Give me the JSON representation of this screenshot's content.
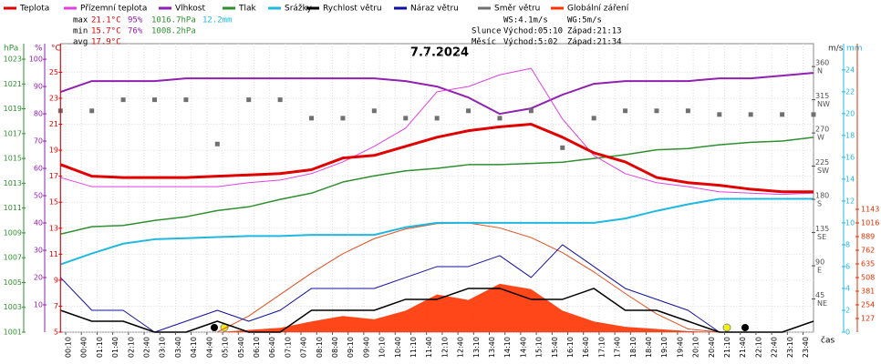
{
  "chart_data": {
    "type": "line",
    "title": "7.7.2024",
    "x": [
      0,
      60,
      120,
      180,
      240,
      300,
      360,
      420,
      480,
      540,
      600,
      660,
      720,
      780,
      840,
      900,
      960,
      1020,
      1080,
      1140,
      1200,
      1260,
      1320,
      1380,
      1440
    ],
    "xlim": [
      0,
      1440
    ],
    "xlabel": "čas",
    "grid": true,
    "xticks": [
      {
        "value": 10,
        "label": "00:10"
      },
      {
        "value": 40,
        "label": "00:40"
      },
      {
        "value": 70,
        "label": "01:10"
      },
      {
        "value": 100,
        "label": "01:40"
      },
      {
        "value": 130,
        "label": "02:10"
      },
      {
        "value": 160,
        "label": "02:40"
      },
      {
        "value": 190,
        "label": "03:10"
      },
      {
        "value": 220,
        "label": "03:40"
      },
      {
        "value": 250,
        "label": "04:10"
      },
      {
        "value": 280,
        "label": "04:40"
      },
      {
        "value": 310,
        "label": "05:10"
      },
      {
        "value": 340,
        "label": "05:40"
      },
      {
        "value": 370,
        "label": "06:10"
      },
      {
        "value": 400,
        "label": "06:40"
      },
      {
        "value": 430,
        "label": "07:10"
      },
      {
        "value": 460,
        "label": "07:40"
      },
      {
        "value": 490,
        "label": "08:10"
      },
      {
        "value": 520,
        "label": "08:40"
      },
      {
        "value": 550,
        "label": "09:10"
      },
      {
        "value": 580,
        "label": "09:40"
      },
      {
        "value": 610,
        "label": "10:10"
      },
      {
        "value": 640,
        "label": "10:40"
      },
      {
        "value": 670,
        "label": "11:10"
      },
      {
        "value": 700,
        "label": "11:40"
      },
      {
        "value": 730,
        "label": "12:10"
      },
      {
        "value": 760,
        "label": "12:40"
      },
      {
        "value": 790,
        "label": "13:10"
      },
      {
        "value": 820,
        "label": "13:40"
      },
      {
        "value": 850,
        "label": "14:10"
      },
      {
        "value": 880,
        "label": "14:40"
      },
      {
        "value": 910,
        "label": "15:10"
      },
      {
        "value": 940,
        "label": "15:40"
      },
      {
        "value": 970,
        "label": "16:10"
      },
      {
        "value": 1000,
        "label": "16:40"
      },
      {
        "value": 1030,
        "label": "17:10"
      },
      {
        "value": 1060,
        "label": "17:40"
      },
      {
        "value": 1090,
        "label": "18:10"
      },
      {
        "value": 1120,
        "label": "18:40"
      },
      {
        "value": 1150,
        "label": "19:10"
      },
      {
        "value": 1180,
        "label": "19:40"
      },
      {
        "value": 1210,
        "label": "20:10"
      },
      {
        "value": 1240,
        "label": "20:40"
      },
      {
        "value": 1270,
        "label": "21:10"
      },
      {
        "value": 1300,
        "label": "21:40"
      },
      {
        "value": 1330,
        "label": "22:10"
      },
      {
        "value": 1360,
        "label": "22:40"
      },
      {
        "value": 1390,
        "label": "23:10"
      },
      {
        "value": 1420,
        "label": "23:40"
      }
    ],
    "axes": {
      "press": {
        "unit": "hPa",
        "color": "#2f8f2f",
        "ylim": [
          1001,
          1024.25
        ],
        "yticks": [
          1001,
          1003,
          1005,
          1007,
          1009,
          1011,
          1013,
          1015,
          1017,
          1019,
          1021,
          1023
        ]
      },
      "hum": {
        "unit": "%",
        "color": "#9020b0",
        "ylim": [
          0,
          105.7
        ],
        "yticks": [
          10,
          20,
          30,
          40,
          50,
          60,
          70,
          80,
          90,
          100
        ]
      },
      "temp": {
        "unit": "°C",
        "color": "#e00000",
        "ylim": [
          5,
          27.2
        ],
        "yticks": [
          5,
          7,
          9,
          11,
          13,
          15,
          17,
          19,
          21,
          23,
          25
        ]
      },
      "dir": {
        "color": "#505050",
        "ylim": [
          0,
          391
        ],
        "yticks": [
          45,
          90,
          135,
          180,
          225,
          270,
          315,
          360
        ],
        "compass": [
          "NE",
          "E",
          "SE",
          "S",
          "SW",
          "W",
          "NW",
          "N"
        ]
      },
      "wind": {
        "unit": "m/s",
        "color": "#303030",
        "ylim": [
          0,
          26.4
        ]
      },
      "rain": {
        "unit": "mm",
        "color": "#20b8e0",
        "ylim": [
          0,
          26.4
        ],
        "yticks": [
          0,
          2,
          4,
          6,
          8,
          10,
          12,
          14,
          16,
          18,
          20,
          22,
          24
        ]
      },
      "solar": {
        "color": "#e03000",
        "ylim": [
          0,
          2684
        ],
        "yticks": [
          127,
          254,
          381,
          508,
          635,
          762,
          889,
          1016,
          1143
        ]
      }
    },
    "series": [
      {
        "name": "Globální záření",
        "kind": "area",
        "axis": "solar",
        "color": "#ff3300",
        "values": [
          0,
          0,
          0,
          0,
          0,
          0,
          20,
          40,
          100,
          150,
          120,
          200,
          350,
          300,
          450,
          400,
          200,
          100,
          50,
          30,
          10,
          0,
          0,
          0,
          0
        ]
      },
      {
        "kind": "line",
        "axis": "solar",
        "color": "#e05020",
        "width": 1,
        "values": [
          null,
          null,
          null,
          null,
          null,
          0,
          150,
          350,
          550,
          730,
          870,
          960,
          1010,
          1016,
          970,
          880,
          740,
          560,
          360,
          170,
          30,
          0,
          null,
          null,
          null
        ]
      },
      {
        "name": "Srážky",
        "kind": "line",
        "axis": "rain",
        "color": "#20b8e0",
        "width": 2,
        "values": [
          6.2,
          7.2,
          8.1,
          8.5,
          8.6,
          8.7,
          8.8,
          8.8,
          8.9,
          8.9,
          8.9,
          9.6,
          10,
          10,
          10,
          10,
          10,
          10,
          10.4,
          11.1,
          11.7,
          12.2,
          12.2,
          12.2,
          12.2
        ]
      },
      {
        "name": "Tlak",
        "kind": "line",
        "axis": "press",
        "color": "#2f8f2f",
        "width": 1.5,
        "values": [
          1008.9,
          1009.5,
          1009.6,
          1010,
          1010.3,
          1010.8,
          1011.1,
          1011.7,
          1012.2,
          1013.1,
          1013.6,
          1014,
          1014.2,
          1014.5,
          1014.5,
          1014.6,
          1014.7,
          1015,
          1015.3,
          1015.7,
          1015.8,
          1016.1,
          1016.3,
          1016.4,
          1016.7
        ]
      },
      {
        "name": "Vlhkost",
        "kind": "line",
        "axis": "hum",
        "color": "#9020b0",
        "width": 2,
        "values": [
          88,
          92,
          92,
          92,
          93,
          93,
          93,
          93,
          93,
          93,
          93,
          92,
          90,
          86,
          80,
          82,
          87,
          91,
          92,
          92,
          92,
          93,
          93,
          94,
          95
        ]
      },
      {
        "name": "Přízemní teplota",
        "kind": "line",
        "axis": "temp",
        "color": "#e040e0",
        "width": 1,
        "values": [
          16.9,
          16.2,
          16.2,
          16.2,
          16.2,
          16.2,
          16.5,
          16.7,
          17.2,
          18.1,
          19.3,
          20.7,
          23.5,
          23.9,
          24.8,
          25.3,
          21.4,
          18.6,
          17.2,
          16.5,
          16.2,
          15.8,
          15.7,
          15.6,
          15.7
        ]
      },
      {
        "name": "Teplota",
        "kind": "line",
        "axis": "temp",
        "color": "#e00000",
        "width": 3,
        "values": [
          17.9,
          17,
          16.9,
          16.9,
          16.9,
          17,
          17.1,
          17.2,
          17.5,
          18.4,
          18.6,
          19.3,
          20,
          20.5,
          20.8,
          21,
          20,
          18.8,
          18.1,
          16.9,
          16.5,
          16.3,
          16,
          15.8,
          15.8
        ]
      },
      {
        "name": "Směr větru",
        "kind": "scatter",
        "axis": "dir",
        "color": "#707070",
        "values": [
          300,
          300,
          315,
          315,
          315,
          255,
          315,
          315,
          290,
          290,
          300,
          290,
          290,
          300,
          290,
          300,
          250,
          290,
          300,
          300,
          300,
          295,
          295,
          295,
          295
        ]
      },
      {
        "name": "Náraz větru",
        "kind": "line",
        "axis": "wind",
        "color": "#1010a0",
        "width": 1,
        "values": [
          5,
          2,
          2,
          0,
          1,
          2,
          1,
          2,
          4,
          4,
          4,
          5,
          6,
          6,
          7,
          5,
          8,
          6,
          4,
          3,
          2,
          0,
          0,
          0,
          1
        ]
      },
      {
        "name": "Rychlost větru",
        "kind": "line",
        "axis": "wind",
        "color": "#000000",
        "width": 1.5,
        "values": [
          2,
          1,
          1,
          0,
          0,
          1,
          0,
          0,
          2,
          2,
          2,
          3,
          3,
          4,
          4,
          3,
          3,
          4,
          2,
          2,
          1,
          0,
          0,
          0,
          1
        ]
      }
    ],
    "legend_order": [
      6,
      5,
      4,
      3,
      2,
      9,
      8,
      7,
      0
    ],
    "stats": [
      {
        "label": "max",
        "values": [
          "21.1°C",
          "95%",
          "1016.7hPa",
          "12.2mm"
        ]
      },
      {
        "label": "min",
        "values": [
          "15.7°C",
          "76%",
          "1008.2hPa"
        ]
      },
      {
        "label": "avg",
        "values": [
          "17.9°C"
        ]
      }
    ],
    "astro": [
      {
        "values": [
          "WS:4.1m/s",
          "WG:5m/s"
        ]
      },
      {
        "label": "Slunce",
        "values": [
          "Východ:05:10",
          "Západ:21:13"
        ]
      },
      {
        "label": "Měsíc",
        "values": [
          "Východ:5:02",
          "Západ:21:34"
        ]
      }
    ]
  }
}
